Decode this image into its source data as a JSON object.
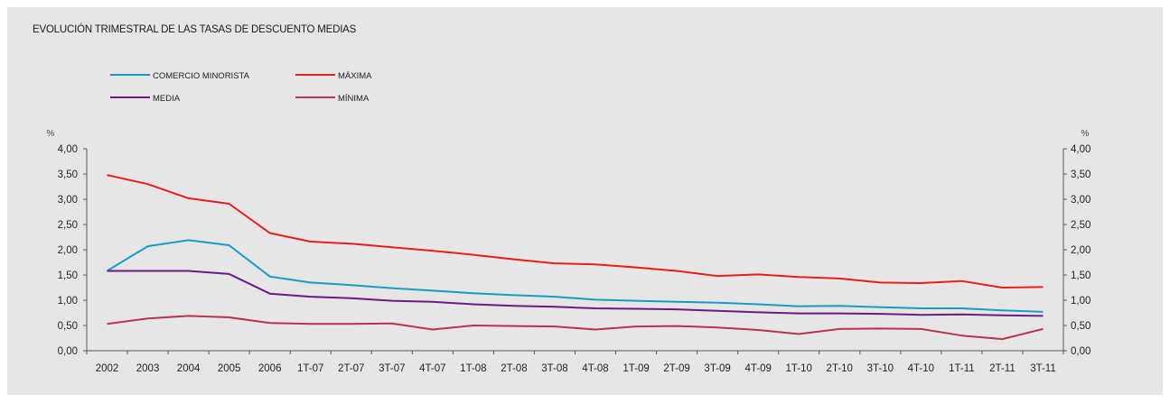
{
  "chart_data": {
    "type": "line",
    "title": "EVOLUCIÓN TRIMESTRAL DE LAS TASAS DE DESCUENTO MEDIAS",
    "y_unit_left": "%",
    "y_unit_right": "%",
    "ylim": [
      0,
      4
    ],
    "yticks": [
      "0,00",
      "0,50",
      "1,00",
      "1,50",
      "2,00",
      "2,50",
      "3,00",
      "3,50",
      "4,00"
    ],
    "grid": false,
    "legend_position": "top-left",
    "categories": [
      "2002",
      "2003",
      "2004",
      "2005",
      "2006",
      "1T-07",
      "2T-07",
      "3T-07",
      "4T-07",
      "1T-08",
      "2T-08",
      "3T-08",
      "4T-08",
      "1T-09",
      "2T-09",
      "3T-09",
      "4T-09",
      "1T-10",
      "2T-10",
      "3T-10",
      "4T-10",
      "1T-11",
      "2T-11",
      "3T-11"
    ],
    "series": [
      {
        "name": "COMERCIO MINORISTA",
        "color": "#1a9bc4",
        "values": [
          1.58,
          2.07,
          2.19,
          2.09,
          1.47,
          1.35,
          1.3,
          1.24,
          1.19,
          1.14,
          1.1,
          1.07,
          1.01,
          0.99,
          0.97,
          0.95,
          0.92,
          0.88,
          0.89,
          0.86,
          0.84,
          0.84,
          0.8,
          0.77
        ]
      },
      {
        "name": "MÁXIMA",
        "color": "#ee1b1b",
        "values": [
          3.48,
          3.3,
          3.02,
          2.91,
          2.33,
          2.16,
          2.12,
          2.05,
          1.98,
          1.9,
          1.81,
          1.73,
          1.71,
          1.65,
          1.58,
          1.48,
          1.51,
          1.46,
          1.43,
          1.35,
          1.34,
          1.38,
          1.25,
          1.26
        ]
      },
      {
        "name": "MEDIA",
        "color": "#6a1b8a",
        "values": [
          1.58,
          1.58,
          1.58,
          1.52,
          1.13,
          1.07,
          1.04,
          0.99,
          0.97,
          0.92,
          0.89,
          0.87,
          0.84,
          0.83,
          0.82,
          0.79,
          0.76,
          0.74,
          0.74,
          0.73,
          0.71,
          0.72,
          0.7,
          0.69
        ]
      },
      {
        "name": "MÍNIMA",
        "color": "#b8344e",
        "values": [
          0.53,
          0.64,
          0.69,
          0.66,
          0.55,
          0.53,
          0.53,
          0.54,
          0.42,
          0.5,
          0.49,
          0.48,
          0.42,
          0.48,
          0.49,
          0.46,
          0.41,
          0.33,
          0.43,
          0.44,
          0.43,
          0.3,
          0.23,
          0.43
        ]
      }
    ]
  }
}
